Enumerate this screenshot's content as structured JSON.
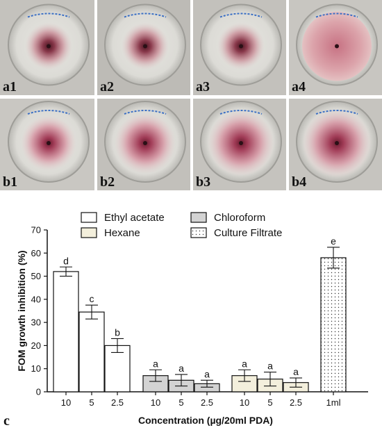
{
  "photos": {
    "row_a": [
      "a1",
      "a2",
      "a3",
      "a4"
    ],
    "row_b": [
      "b1",
      "b2",
      "b3",
      "b4"
    ]
  },
  "panel_c_label": "c",
  "chart_data": {
    "type": "bar",
    "ylabel": "FOM growth inhibition (%)",
    "xlabel": "Concentration (µg/20ml PDA)",
    "ylim": [
      0,
      70
    ],
    "yticks": [
      0,
      10,
      20,
      30,
      40,
      50,
      60,
      70
    ],
    "legend": [
      {
        "name": "Ethyl acetate",
        "fill": "#ffffff",
        "pattern": "none"
      },
      {
        "name": "Chloroform",
        "fill": "#d3d3d3",
        "pattern": "none"
      },
      {
        "name": "Hexane",
        "fill": "#f3efdc",
        "pattern": "none"
      },
      {
        "name": "Culture Filtrate",
        "fill": "#ffffff",
        "pattern": "dots"
      }
    ],
    "groups": [
      {
        "series": "Ethyl acetate",
        "categories": [
          "10",
          "5",
          "2.5"
        ],
        "values": [
          52,
          34.5,
          20
        ],
        "errors": [
          2,
          3,
          3
        ],
        "letters": [
          "d",
          "c",
          "b"
        ]
      },
      {
        "series": "Chloroform",
        "categories": [
          "10",
          "5",
          "2.5"
        ],
        "values": [
          7,
          5,
          3.5
        ],
        "errors": [
          2.5,
          2.5,
          1.5
        ],
        "letters": [
          "a",
          "a",
          "a"
        ]
      },
      {
        "series": "Hexane",
        "categories": [
          "10",
          "5",
          "2.5"
        ],
        "values": [
          7,
          5.5,
          4
        ],
        "errors": [
          2.5,
          3,
          2
        ],
        "letters": [
          "a",
          "a",
          "a"
        ]
      },
      {
        "series": "Culture Filtrate",
        "categories": [
          "1ml"
        ],
        "values": [
          58
        ],
        "errors": [
          4.5
        ],
        "letters": [
          "e"
        ]
      }
    ]
  }
}
